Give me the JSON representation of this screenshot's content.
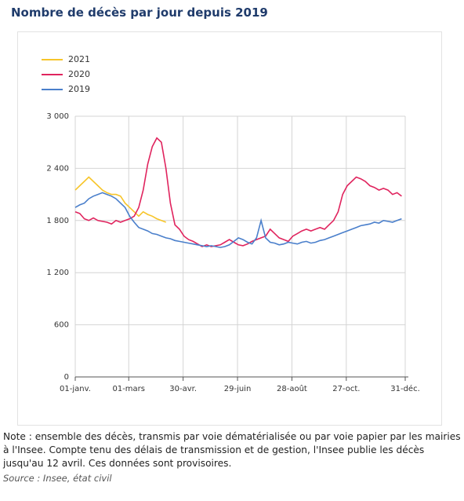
{
  "chart_data": {
    "type": "line",
    "title": "Nombre de décès par jour depuis 2019",
    "note": "Note : ensemble des décès, transmis par voie dématérialisée ou par voie papier par les mairies à l'Insee. Compte tenu des délais de transmission et de gestion, l'Insee publie les décès jusqu'au 12 avril. Ces données sont provisoires.",
    "source": "Source : Insee, état civil",
    "x": [
      1,
      6,
      11,
      16,
      21,
      26,
      31,
      36,
      41,
      46,
      51,
      56,
      61,
      66,
      71,
      76,
      81,
      86,
      91,
      96,
      101,
      106,
      111,
      116,
      121,
      126,
      131,
      136,
      141,
      146,
      151,
      156,
      161,
      166,
      171,
      176,
      181,
      186,
      191,
      196,
      201,
      206,
      211,
      216,
      221,
      226,
      231,
      236,
      241,
      246,
      251,
      256,
      261,
      266,
      271,
      276,
      281,
      286,
      291,
      296,
      301,
      306,
      311,
      316,
      321,
      326,
      331,
      336,
      341,
      346,
      351,
      356,
      361
    ],
    "xlim": [
      1,
      365
    ],
    "xticks": [
      {
        "value": 1,
        "label": "01-janv."
      },
      {
        "value": 60,
        "label": "01-mars"
      },
      {
        "value": 120,
        "label": "30-avr."
      },
      {
        "value": 180,
        "label": "29-juin"
      },
      {
        "value": 240,
        "label": "28-août"
      },
      {
        "value": 300,
        "label": "27-oct."
      },
      {
        "value": 365,
        "label": "31-déc."
      }
    ],
    "ylim": [
      0,
      3000
    ],
    "yticks": [
      0,
      600,
      {
        "value": 1200,
        "label": "1 200"
      },
      {
        "value": 1800,
        "label": "1 800"
      },
      {
        "value": 2400,
        "label": "2 400"
      },
      {
        "value": 3000,
        "label": "3 000"
      }
    ],
    "grid": true,
    "series": [
      {
        "name": "2021",
        "color": "#f7c52a",
        "values": [
          2150,
          2200,
          2250,
          2300,
          2250,
          2200,
          2150,
          2120,
          2100,
          2100,
          2080,
          2000,
          1950,
          1900,
          1850,
          1900,
          1870,
          1850,
          1820,
          1800,
          1780,
          null,
          null,
          null,
          null,
          null,
          null,
          null,
          null,
          null,
          null,
          null,
          null,
          null,
          null,
          null,
          null,
          null,
          null,
          null,
          null,
          null,
          null,
          null,
          null,
          null,
          null,
          null,
          null,
          null,
          null,
          null,
          null,
          null,
          null,
          null,
          null,
          null,
          null,
          null,
          null,
          null,
          null,
          null,
          null,
          null,
          null,
          null,
          null,
          null,
          null,
          null,
          null
        ]
      },
      {
        "name": "2020",
        "color": "#e0245e",
        "values": [
          1900,
          1880,
          1820,
          1800,
          1830,
          1800,
          1790,
          1780,
          1760,
          1800,
          1780,
          1800,
          1820,
          1850,
          1950,
          2150,
          2450,
          2650,
          2750,
          2700,
          2400,
          2000,
          1750,
          1700,
          1620,
          1580,
          1560,
          1530,
          1500,
          1520,
          1500,
          1510,
          1520,
          1550,
          1580,
          1550,
          1520,
          1510,
          1530,
          1560,
          1580,
          1600,
          1620,
          1700,
          1650,
          1600,
          1580,
          1560,
          1620,
          1650,
          1680,
          1700,
          1680,
          1700,
          1720,
          1700,
          1750,
          1800,
          1900,
          2100,
          2200,
          2250,
          2300,
          2280,
          2250,
          2200,
          2180,
          2150,
          2170,
          2150,
          2100,
          2120,
          2080
        ]
      },
      {
        "name": "2019",
        "color": "#4a7fcb",
        "values": [
          1950,
          1980,
          2000,
          2050,
          2080,
          2100,
          2120,
          2100,
          2080,
          2050,
          2000,
          1950,
          1850,
          1780,
          1720,
          1700,
          1680,
          1650,
          1640,
          1620,
          1600,
          1590,
          1570,
          1560,
          1550,
          1540,
          1530,
          1520,
          1510,
          1500,
          1510,
          1500,
          1490,
          1500,
          1520,
          1560,
          1600,
          1580,
          1550,
          1530,
          1600,
          1800,
          1600,
          1550,
          1540,
          1520,
          1530,
          1550,
          1540,
          1530,
          1550,
          1560,
          1540,
          1550,
          1570,
          1580,
          1600,
          1620,
          1640,
          1660,
          1680,
          1700,
          1720,
          1740,
          1750,
          1760,
          1780,
          1770,
          1800,
          1790,
          1780,
          1800,
          1820
        ]
      }
    ]
  }
}
